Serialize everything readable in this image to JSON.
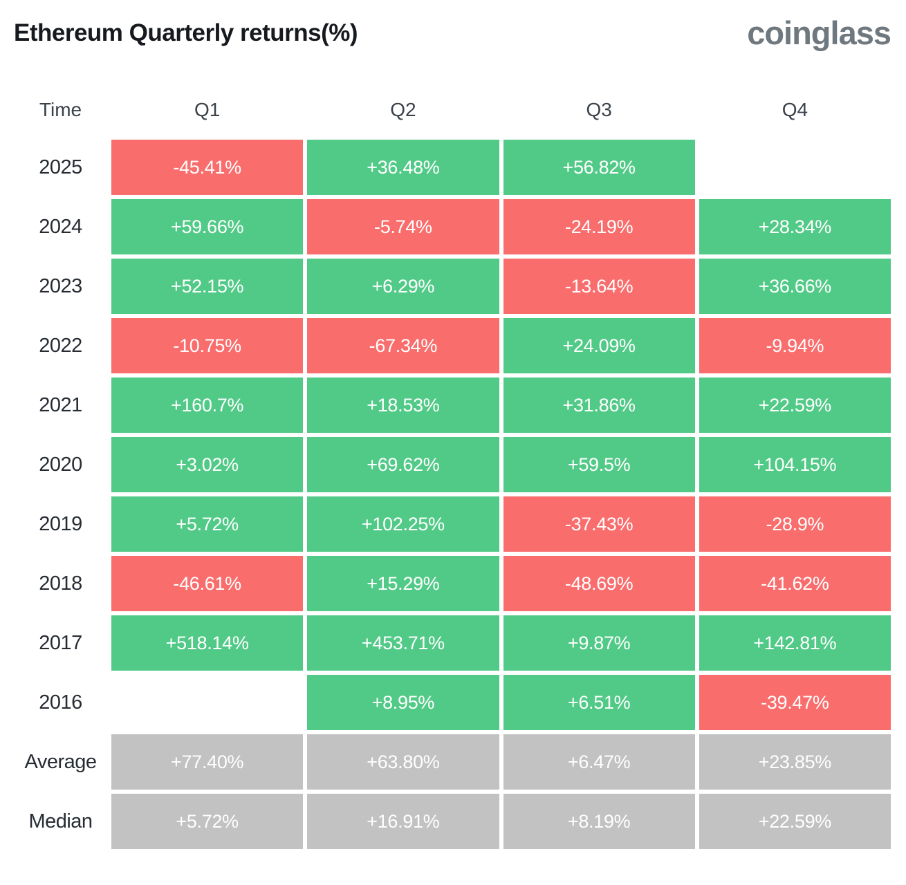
{
  "header": {
    "title": "Ethereum Quarterly returns(%)",
    "logo": "coinglass"
  },
  "colors": {
    "positive": "#52ca87",
    "negative": "#f96d6d",
    "summary": "#c2c2c2",
    "cell_text": "#ffffff",
    "title_text": "#16191e",
    "logo_text": "#6e787e"
  },
  "table": {
    "columns": [
      "Time",
      "Q1",
      "Q2",
      "Q3",
      "Q4"
    ],
    "rows": [
      {
        "label": "2025",
        "cells": [
          {
            "value": "-45.41%",
            "type": "negative"
          },
          {
            "value": "+36.48%",
            "type": "positive"
          },
          {
            "value": "+56.82%",
            "type": "positive"
          },
          {
            "value": "",
            "type": "empty"
          }
        ]
      },
      {
        "label": "2024",
        "cells": [
          {
            "value": "+59.66%",
            "type": "positive"
          },
          {
            "value": "-5.74%",
            "type": "negative"
          },
          {
            "value": "-24.19%",
            "type": "negative"
          },
          {
            "value": "+28.34%",
            "type": "positive"
          }
        ]
      },
      {
        "label": "2023",
        "cells": [
          {
            "value": "+52.15%",
            "type": "positive"
          },
          {
            "value": "+6.29%",
            "type": "positive"
          },
          {
            "value": "-13.64%",
            "type": "negative"
          },
          {
            "value": "+36.66%",
            "type": "positive"
          }
        ]
      },
      {
        "label": "2022",
        "cells": [
          {
            "value": "-10.75%",
            "type": "negative"
          },
          {
            "value": "-67.34%",
            "type": "negative"
          },
          {
            "value": "+24.09%",
            "type": "positive"
          },
          {
            "value": "-9.94%",
            "type": "negative"
          }
        ]
      },
      {
        "label": "2021",
        "cells": [
          {
            "value": "+160.7%",
            "type": "positive"
          },
          {
            "value": "+18.53%",
            "type": "positive"
          },
          {
            "value": "+31.86%",
            "type": "positive"
          },
          {
            "value": "+22.59%",
            "type": "positive"
          }
        ]
      },
      {
        "label": "2020",
        "cells": [
          {
            "value": "+3.02%",
            "type": "positive"
          },
          {
            "value": "+69.62%",
            "type": "positive"
          },
          {
            "value": "+59.5%",
            "type": "positive"
          },
          {
            "value": "+104.15%",
            "type": "positive"
          }
        ]
      },
      {
        "label": "2019",
        "cells": [
          {
            "value": "+5.72%",
            "type": "positive"
          },
          {
            "value": "+102.25%",
            "type": "positive"
          },
          {
            "value": "-37.43%",
            "type": "negative"
          },
          {
            "value": "-28.9%",
            "type": "negative"
          }
        ]
      },
      {
        "label": "2018",
        "cells": [
          {
            "value": "-46.61%",
            "type": "negative"
          },
          {
            "value": "+15.29%",
            "type": "positive"
          },
          {
            "value": "-48.69%",
            "type": "negative"
          },
          {
            "value": "-41.62%",
            "type": "negative"
          }
        ]
      },
      {
        "label": "2017",
        "cells": [
          {
            "value": "+518.14%",
            "type": "positive"
          },
          {
            "value": "+453.71%",
            "type": "positive"
          },
          {
            "value": "+9.87%",
            "type": "positive"
          },
          {
            "value": "+142.81%",
            "type": "positive"
          }
        ]
      },
      {
        "label": "2016",
        "cells": [
          {
            "value": "",
            "type": "empty"
          },
          {
            "value": "+8.95%",
            "type": "positive"
          },
          {
            "value": "+6.51%",
            "type": "positive"
          },
          {
            "value": "-39.47%",
            "type": "negative"
          }
        ]
      },
      {
        "label": "Average",
        "cells": [
          {
            "value": "+77.40%",
            "type": "summary"
          },
          {
            "value": "+63.80%",
            "type": "summary"
          },
          {
            "value": "+6.47%",
            "type": "summary"
          },
          {
            "value": "+23.85%",
            "type": "summary"
          }
        ]
      },
      {
        "label": "Median",
        "cells": [
          {
            "value": "+5.72%",
            "type": "summary"
          },
          {
            "value": "+16.91%",
            "type": "summary"
          },
          {
            "value": "+8.19%",
            "type": "summary"
          },
          {
            "value": "+22.59%",
            "type": "summary"
          }
        ]
      }
    ]
  },
  "chart_data": {
    "type": "heatmap",
    "title": "Ethereum Quarterly returns(%)",
    "columns": [
      "Q1",
      "Q2",
      "Q3",
      "Q4"
    ],
    "rows": [
      "2025",
      "2024",
      "2023",
      "2022",
      "2021",
      "2020",
      "2019",
      "2018",
      "2017",
      "2016",
      "Average",
      "Median"
    ],
    "values": [
      [
        -45.41,
        36.48,
        56.82,
        null
      ],
      [
        59.66,
        -5.74,
        -24.19,
        28.34
      ],
      [
        52.15,
        6.29,
        -13.64,
        36.66
      ],
      [
        -10.75,
        -67.34,
        24.09,
        -9.94
      ],
      [
        160.7,
        18.53,
        31.86,
        22.59
      ],
      [
        3.02,
        69.62,
        59.5,
        104.15
      ],
      [
        5.72,
        102.25,
        -37.43,
        -28.9
      ],
      [
        -46.61,
        15.29,
        -48.69,
        -41.62
      ],
      [
        518.14,
        453.71,
        9.87,
        142.81
      ],
      [
        null,
        8.95,
        6.51,
        -39.47
      ],
      [
        77.4,
        63.8,
        6.47,
        23.85
      ],
      [
        5.72,
        16.91,
        8.19,
        22.59
      ]
    ],
    "legend_position": "none",
    "grid": false,
    "color_coding": "green = positive return, red = negative return, gray = summary rows"
  }
}
